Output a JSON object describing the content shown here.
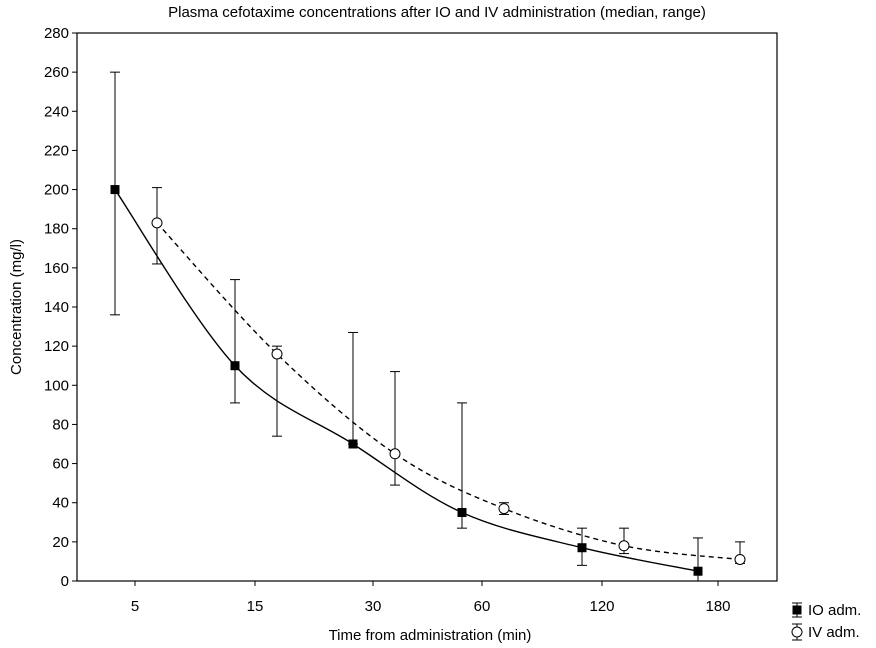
{
  "chart_data": {
    "type": "line",
    "title": "Plasma cefotaxime concentrations after IO and IV administration (median, range)",
    "xlabel": "Time from administration (min)",
    "ylabel": "Concentration (mg/l)",
    "categories": [
      "5",
      "15",
      "30",
      "60",
      "120",
      "180"
    ],
    "ylim": [
      0,
      280
    ],
    "yticks": [
      0,
      20,
      40,
      60,
      80,
      100,
      120,
      140,
      160,
      180,
      200,
      220,
      240,
      260,
      280
    ],
    "grid": false,
    "legend_position": "bottom-right",
    "series": [
      {
        "name": "IO adm.",
        "marker": "filled-square",
        "line": "solid",
        "color": "#000000",
        "median": [
          200,
          110,
          70,
          35,
          17,
          5
        ],
        "min": [
          136,
          91,
          70,
          27,
          8,
          0
        ],
        "max": [
          260,
          154,
          127,
          91,
          27,
          22
        ]
      },
      {
        "name": "IV adm.",
        "marker": "open-circle",
        "line": "dashed",
        "color": "#000000",
        "median": [
          183,
          116,
          65,
          37,
          18,
          11
        ],
        "min": [
          162,
          74,
          49,
          34,
          14,
          9
        ],
        "max": [
          201,
          120,
          107,
          40,
          27,
          20
        ]
      }
    ]
  }
}
